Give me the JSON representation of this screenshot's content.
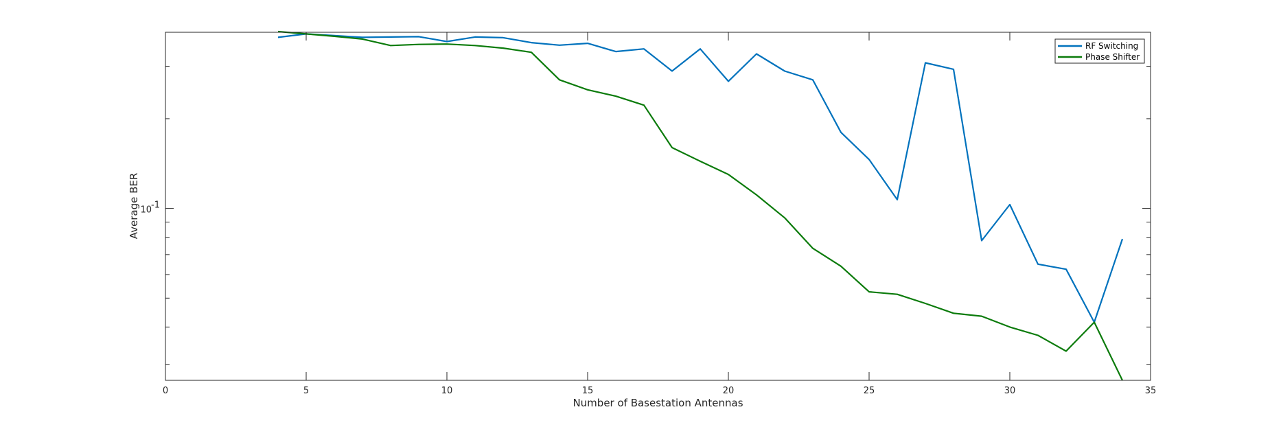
{
  "chart_data": {
    "type": "line",
    "title": "",
    "xlabel": "Number of Basestation Antennas",
    "ylabel": "Average BER",
    "xlim": [
      0,
      35
    ],
    "ylim": [
      0.0265,
      0.39
    ],
    "yscale": "log",
    "xticks": [
      0,
      5,
      10,
      15,
      20,
      25,
      30,
      35
    ],
    "yticks": [
      {
        "value": 0.1,
        "base": "10",
        "exp": "-1"
      }
    ],
    "grid": false,
    "legend_position": "top-right",
    "series": [
      {
        "name": "RF Switching",
        "color": "#0072BD",
        "x": [
          4,
          5,
          6,
          7,
          8,
          9,
          10,
          11,
          12,
          13,
          14,
          15,
          16,
          17,
          18,
          19,
          20,
          21,
          22,
          23,
          24,
          25,
          26,
          27,
          28,
          29,
          30,
          31,
          32,
          33,
          34
        ],
        "y": [
          0.375,
          0.385,
          0.38,
          0.375,
          0.376,
          0.377,
          0.363,
          0.376,
          0.374,
          0.36,
          0.353,
          0.358,
          0.336,
          0.343,
          0.289,
          0.343,
          0.267,
          0.33,
          0.289,
          0.27,
          0.18,
          0.146,
          0.107,
          0.308,
          0.293,
          0.078,
          0.103,
          0.065,
          0.0625,
          0.0415,
          0.079
        ]
      },
      {
        "name": "Phase Shifter",
        "color": "#0B7B0B",
        "x": [
          4,
          5,
          6,
          7,
          8,
          9,
          10,
          11,
          12,
          13,
          14,
          15,
          16,
          17,
          18,
          19,
          20,
          21,
          22,
          23,
          24,
          25,
          26,
          27,
          28,
          29,
          30,
          31,
          32,
          33,
          34
        ],
        "y": [
          0.392,
          0.385,
          0.378,
          0.37,
          0.352,
          0.355,
          0.356,
          0.352,
          0.345,
          0.334,
          0.27,
          0.25,
          0.238,
          0.222,
          0.16,
          0.144,
          0.13,
          0.111,
          0.093,
          0.0735,
          0.064,
          0.0525,
          0.0515,
          0.048,
          0.0445,
          0.0435,
          0.04,
          0.0375,
          0.0332,
          0.0415,
          0.0265
        ]
      }
    ]
  }
}
